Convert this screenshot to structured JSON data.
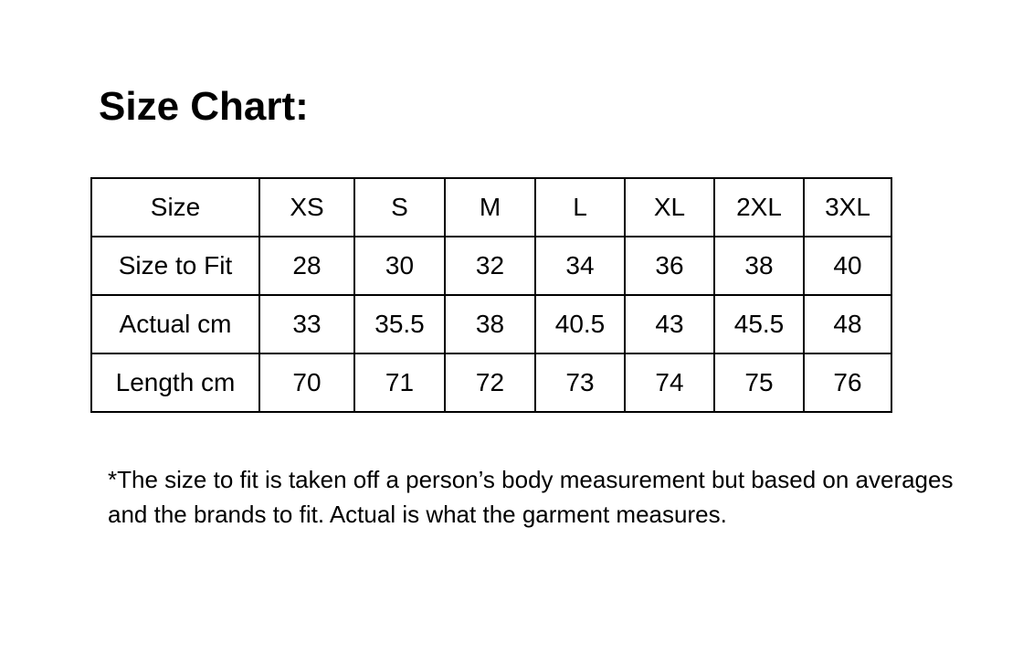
{
  "title": "Size Chart:",
  "table": {
    "headers": [
      "Size",
      "XS",
      "S",
      "M",
      "L",
      "XL",
      "2XL",
      "3XL"
    ],
    "rows": [
      [
        "Size to Fit",
        "28",
        "30",
        "32",
        "34",
        "36",
        "38",
        "40"
      ],
      [
        "Actual cm",
        "33",
        "35.5",
        "38",
        "40.5",
        "43",
        "45.5",
        "48"
      ],
      [
        "Length cm",
        "70",
        "71",
        "72",
        "73",
        "74",
        "75",
        "76"
      ]
    ]
  },
  "footnote": "*The size to fit is taken off a person’s body measurement but based on averages and the brands to fit. Actual is what the garment measures."
}
